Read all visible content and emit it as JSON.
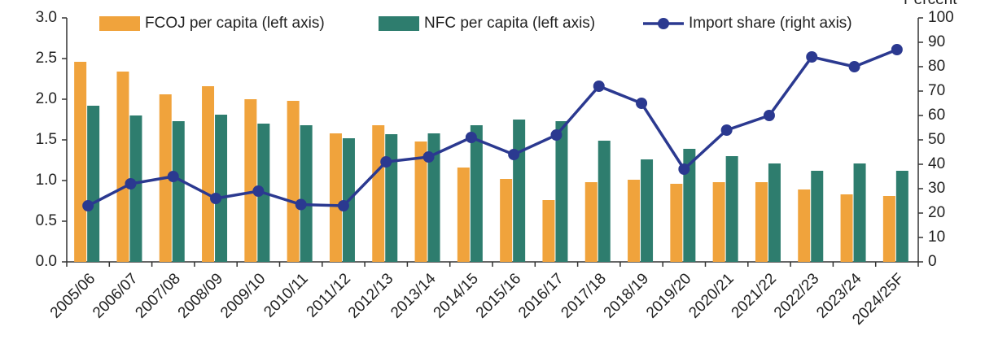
{
  "chart_data": {
    "type": "bar_line",
    "y2label": "Percent",
    "categories": [
      "2005/06",
      "2006/07",
      "2007/08",
      "2008/09",
      "2009/10",
      "2010/11",
      "2011/12",
      "2012/13",
      "2013/14",
      "2014/15",
      "2015/16",
      "2016/17",
      "2017/18",
      "2018/19",
      "2019/20",
      "2020/21",
      "2021/22",
      "2022/23",
      "2023/24",
      "2024/25F"
    ],
    "series": [
      {
        "name": "FCOJ per capita (left axis)",
        "type": "bar",
        "color": "#f0a33c",
        "values": [
          2.46,
          2.34,
          2.06,
          2.16,
          2.0,
          1.98,
          1.58,
          1.68,
          1.48,
          1.16,
          1.02,
          0.76,
          0.98,
          1.01,
          0.96,
          0.98,
          0.98,
          0.89,
          0.83,
          0.81
        ]
      },
      {
        "name": "NFC per capita (left axis)",
        "type": "bar",
        "color": "#2e7d6e",
        "values": [
          1.92,
          1.8,
          1.73,
          1.81,
          1.7,
          1.68,
          1.52,
          1.57,
          1.58,
          1.68,
          1.75,
          1.73,
          1.49,
          1.26,
          1.39,
          1.3,
          1.21,
          1.12,
          1.21,
          1.12
        ]
      },
      {
        "name": "Import share (right axis)",
        "type": "line",
        "axis": "y2",
        "color": "#2b3990",
        "values": [
          23,
          32,
          35,
          26,
          29,
          23.5,
          23,
          41,
          43,
          51,
          44,
          52,
          72,
          65,
          38,
          54,
          60,
          84,
          80,
          87
        ]
      }
    ],
    "ylim": [
      0,
      3
    ],
    "yticks": [
      {
        "value": 0,
        "label": "0.0"
      },
      0.5,
      {
        "value": 1,
        "label": "1.0"
      },
      1.5,
      {
        "value": 2,
        "label": "2.0"
      },
      2.5,
      {
        "value": 3,
        "label": "3.0"
      }
    ],
    "y2lim": [
      0,
      100
    ],
    "y2ticks": [
      0,
      10,
      20,
      30,
      40,
      50,
      60,
      70,
      80,
      90,
      100
    ]
  }
}
